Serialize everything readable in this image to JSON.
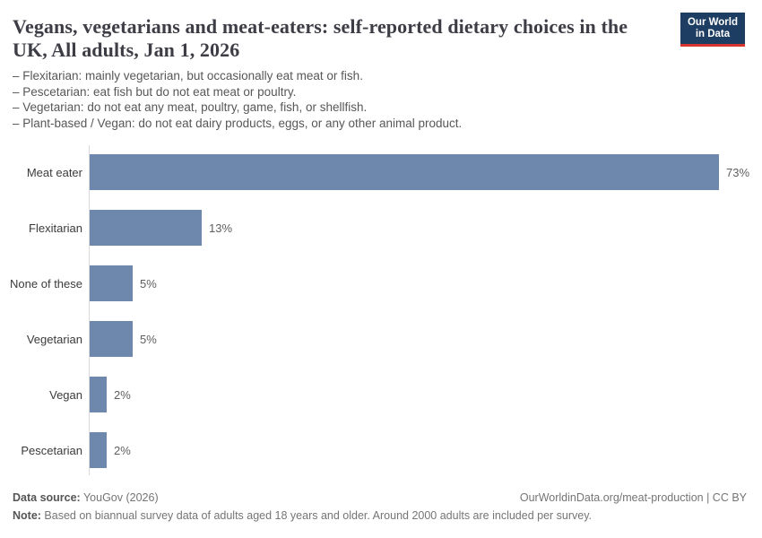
{
  "header": {
    "title": "Vegans, vegetarians and meat-eaters: self-reported dietary choices in the UK, All adults, Jan 1, 2026",
    "subtitle_lines": [
      "– Flexitarian: mainly vegetarian, but occasionally eat meat or fish.",
      "– Pescetarian: eat fish but do not eat meat or poultry.",
      "– Vegetarian: do not eat any meat, poultry, game, fish, or shellfish.",
      "– Plant-based / Vegan: do not eat dairy products, eggs, or any other animal product."
    ],
    "logo": {
      "line1": "Our World",
      "line2": "in Data",
      "bg_color": "#1d3d63",
      "accent_color": "#d7342e"
    }
  },
  "chart_data": {
    "type": "bar",
    "orientation": "horizontal",
    "title": "Vegans, vegetarians and meat-eaters: self-reported dietary choices in the UK, All adults, Jan 1, 2026",
    "categories": [
      "Meat eater",
      "Flexitarian",
      "None of these",
      "Vegetarian",
      "Vegan",
      "Pescetarian"
    ],
    "values": [
      73,
      13,
      5,
      5,
      2,
      2
    ],
    "value_labels": [
      "73%",
      "13%",
      "5%",
      "5%",
      "2%",
      "2%"
    ],
    "unit": "%",
    "xlabel": "",
    "ylabel": "",
    "xlim": [
      0,
      78
    ],
    "grid": false,
    "legend": false,
    "bar_color": "#6d87ad",
    "axis_line_color": "#d9d9d9"
  },
  "footer": {
    "data_source_label": "Data source:",
    "data_source_value": " YouGov (2026)",
    "attribution": "OurWorldinData.org/meat-production | CC BY",
    "note_label": "Note:",
    "note_value": " Based on biannual survey data of adults aged 18 years and older. Around 2000 adults are included per survey."
  }
}
